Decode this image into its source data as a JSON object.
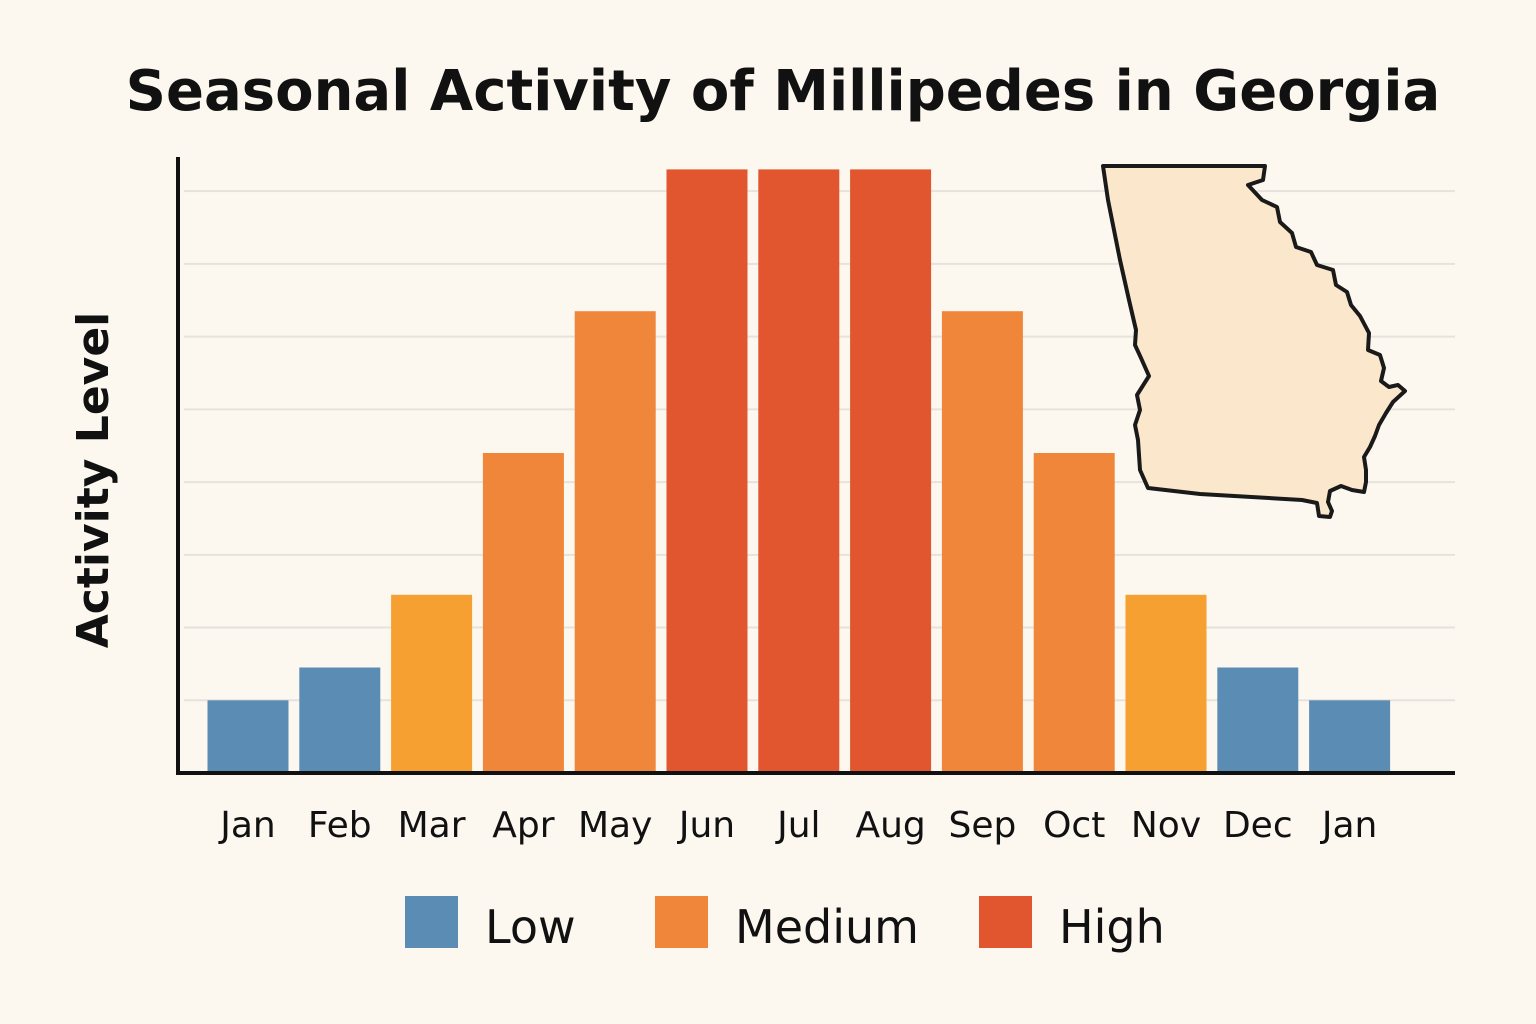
{
  "chart_data": {
    "type": "bar",
    "title": "Seasonal Activity of Millipedes in Georgia",
    "xlabel": "",
    "ylabel": "Activity Level",
    "categories": [
      "Jan",
      "Feb",
      "Mar",
      "Apr",
      "May",
      "Jun",
      "Jul",
      "Aug",
      "Sep",
      "Oct",
      "Nov",
      "Dec",
      "Jan"
    ],
    "values": [
      1,
      1.45,
      2.45,
      4.4,
      6.35,
      8.3,
      8.3,
      8.3,
      6.35,
      4.4,
      2.45,
      1.45,
      1
    ],
    "levels": [
      "Low",
      "Low",
      "Medium",
      "Medium",
      "Medium",
      "High",
      "High",
      "High",
      "Medium",
      "Medium",
      "Medium",
      "Low",
      "Low"
    ],
    "bar_colors": [
      "#5b8db4",
      "#5b8db4",
      "#f5a030",
      "#f0863a",
      "#f0863a",
      "#e1552f",
      "#e1552f",
      "#e1552f",
      "#f0863a",
      "#f0863a",
      "#f5a030",
      "#5b8db4",
      "#5b8db4"
    ],
    "ylim": [
      0,
      8.8
    ],
    "grid": true,
    "legend": {
      "position": "bottom-center",
      "entries": [
        {
          "label": "Low",
          "color": "#5b8db4"
        },
        {
          "label": "Medium",
          "color": "#f0863a"
        },
        {
          "label": "High",
          "color": "#e1552f"
        }
      ]
    },
    "inset": {
      "name": "georgia-map-icon",
      "position": "top-right",
      "fill": "#fbe8cc",
      "stroke": "#1a1a1a"
    }
  },
  "colors": {
    "background": "#fcf8f0",
    "axis": "#111111",
    "grid": "#e6e2dc",
    "text": "#111111"
  }
}
